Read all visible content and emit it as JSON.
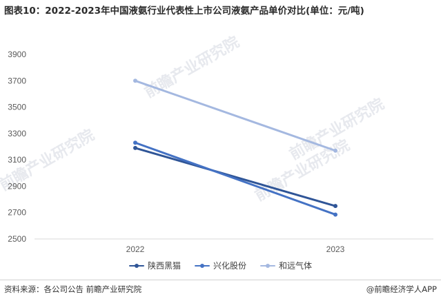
{
  "title": "图表10：2022-2023年中国液氨行业代表性上市公司液氨产品单价对比(单位：元/吨)",
  "watermark": "前瞻产业研究院",
  "source": "资料来源：各公司公告 前瞻产业研究院",
  "brand": "@前瞻经济学人APP",
  "chart_data": {
    "type": "line",
    "x": [
      "2022",
      "2023"
    ],
    "yticks": [
      2500,
      2700,
      2900,
      3100,
      3300,
      3500,
      3700,
      3900
    ],
    "ylim": [
      2500,
      3900
    ],
    "grid": false,
    "legend_position": "bottom",
    "series": [
      {
        "name": "陕西黑猫",
        "values": [
          3190,
          2750
        ],
        "color": "#2f5597"
      },
      {
        "name": "兴化股份",
        "values": [
          3230,
          2685
        ],
        "color": "#4472c4"
      },
      {
        "name": "和远气体",
        "values": [
          3700,
          3170
        ],
        "color": "#a4b8e0"
      }
    ]
  }
}
